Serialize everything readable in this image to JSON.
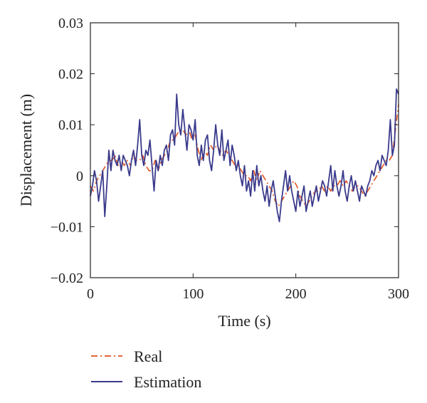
{
  "chart_data": {
    "type": "line",
    "title": "",
    "xlabel": "Time (s)",
    "ylabel": "Displacement (m)",
    "xlim": [
      0,
      300
    ],
    "ylim": [
      -0.02,
      0.03
    ],
    "x_ticks": [
      0,
      100,
      200,
      300
    ],
    "x_tick_labels": [
      "0",
      "100",
      "200",
      "300"
    ],
    "y_ticks": [
      -0.02,
      -0.01,
      0,
      0.01,
      0.02,
      0.03
    ],
    "y_tick_labels": [
      "−0.02",
      "−0.01",
      "0",
      "0.01",
      "0.02",
      "0.03"
    ],
    "grid": false,
    "legend_position": "bottom",
    "series": [
      {
        "name": "Real",
        "color": "#e0521c",
        "line_style": "dash-dot",
        "x": [
          0,
          3,
          6,
          9,
          12,
          15,
          18,
          21,
          24,
          27,
          30,
          33,
          36,
          39,
          42,
          45,
          48,
          51,
          54,
          57,
          60,
          63,
          66,
          69,
          72,
          75,
          78,
          81,
          84,
          87,
          90,
          93,
          96,
          99,
          102,
          105,
          108,
          111,
          114,
          117,
          120,
          123,
          126,
          129,
          132,
          135,
          138,
          141,
          144,
          147,
          150,
          153,
          156,
          159,
          162,
          165,
          168,
          171,
          174,
          177,
          180,
          183,
          186,
          189,
          192,
          195,
          198,
          201,
          204,
          207,
          210,
          213,
          216,
          219,
          222,
          225,
          228,
          231,
          234,
          237,
          240,
          243,
          246,
          249,
          252,
          255,
          258,
          261,
          264,
          267,
          270,
          273,
          276,
          279,
          282,
          285,
          288,
          291,
          294,
          297,
          300
        ],
        "y": [
          -0.002,
          -0.003,
          -0.001,
          0.0,
          0.001,
          0.002,
          0.003,
          0.003,
          0.004,
          0.002,
          0.003,
          0.002,
          0.003,
          0.002,
          0.004,
          0.003,
          0.003,
          0.004,
          0.002,
          0.001,
          0.001,
          0.003,
          0.001,
          0.003,
          0.004,
          0.005,
          0.007,
          0.007,
          0.008,
          0.009,
          0.009,
          0.008,
          0.009,
          0.007,
          0.008,
          0.005,
          0.003,
          0.005,
          0.004,
          0.006,
          0.005,
          0.006,
          0.005,
          0.004,
          0.005,
          0.004,
          0.003,
          0.002,
          0.002,
          0.001,
          0.0,
          0.0,
          -0.001,
          0.001,
          -0.001,
          0.001,
          0.0,
          -0.001,
          -0.002,
          -0.003,
          -0.005,
          -0.006,
          -0.005,
          -0.004,
          -0.003,
          -0.002,
          -0.001,
          -0.002,
          -0.004,
          -0.005,
          -0.006,
          -0.005,
          -0.004,
          -0.003,
          -0.003,
          -0.002,
          -0.003,
          -0.002,
          -0.003,
          -0.002,
          -0.002,
          -0.001,
          -0.002,
          -0.001,
          -0.002,
          -0.003,
          -0.002,
          -0.002,
          -0.003,
          -0.004,
          -0.003,
          -0.002,
          -0.001,
          0.0,
          0.001,
          0.002,
          0.003,
          0.003,
          0.004,
          0.009,
          0.014
        ]
      },
      {
        "name": "Estimation",
        "color": "#3a3a8c",
        "line_style": "solid",
        "x": [
          0,
          2,
          4,
          6,
          8,
          10,
          12,
          14,
          16,
          18,
          20,
          22,
          24,
          26,
          28,
          30,
          32,
          34,
          36,
          38,
          40,
          42,
          44,
          46,
          48,
          50,
          52,
          54,
          56,
          58,
          60,
          62,
          64,
          66,
          68,
          70,
          72,
          74,
          76,
          78,
          80,
          82,
          84,
          86,
          88,
          90,
          92,
          94,
          96,
          98,
          100,
          102,
          104,
          106,
          108,
          110,
          112,
          114,
          116,
          118,
          120,
          122,
          124,
          126,
          128,
          130,
          132,
          134,
          136,
          138,
          140,
          142,
          144,
          146,
          148,
          150,
          152,
          154,
          156,
          158,
          160,
          162,
          164,
          166,
          168,
          170,
          172,
          174,
          176,
          178,
          180,
          182,
          184,
          186,
          188,
          190,
          192,
          194,
          196,
          198,
          200,
          202,
          204,
          206,
          208,
          210,
          212,
          214,
          216,
          218,
          220,
          222,
          224,
          226,
          228,
          230,
          232,
          234,
          236,
          238,
          240,
          242,
          244,
          246,
          248,
          250,
          252,
          254,
          256,
          258,
          260,
          262,
          264,
          266,
          268,
          270,
          272,
          274,
          276,
          278,
          280,
          282,
          284,
          286,
          288,
          290,
          292,
          294,
          296,
          298,
          300
        ],
        "y": [
          -0.004,
          -0.002,
          0.001,
          -0.001,
          -0.005,
          -0.002,
          0.001,
          -0.008,
          -0.002,
          0.005,
          0.001,
          0.005,
          0.003,
          0.002,
          0.004,
          0.001,
          0.004,
          0.003,
          0.002,
          0.0,
          0.003,
          0.005,
          0.002,
          0.006,
          0.011,
          0.004,
          0.002,
          0.005,
          0.004,
          0.007,
          0.002,
          -0.003,
          0.003,
          0.001,
          0.004,
          0.002,
          0.005,
          0.006,
          0.003,
          0.008,
          0.009,
          0.006,
          0.016,
          0.01,
          0.008,
          0.013,
          0.009,
          0.005,
          0.01,
          0.009,
          0.007,
          0.011,
          0.004,
          0.002,
          0.006,
          0.003,
          0.007,
          0.008,
          0.003,
          0.001,
          0.005,
          0.01,
          0.006,
          0.004,
          0.009,
          0.003,
          0.005,
          0.007,
          0.002,
          0.006,
          0.004,
          0.001,
          0.003,
          0.0,
          -0.002,
          0.002,
          -0.003,
          -0.001,
          -0.004,
          0.001,
          -0.003,
          0.002,
          -0.002,
          0.0,
          -0.003,
          -0.005,
          -0.002,
          -0.006,
          -0.003,
          -0.001,
          -0.004,
          -0.007,
          -0.009,
          -0.005,
          -0.002,
          0.001,
          -0.003,
          0.0,
          -0.003,
          -0.005,
          -0.007,
          -0.003,
          -0.006,
          -0.004,
          -0.002,
          -0.007,
          -0.005,
          -0.003,
          -0.006,
          -0.004,
          -0.002,
          -0.005,
          -0.003,
          -0.001,
          -0.002,
          -0.004,
          -0.001,
          0.002,
          -0.003,
          0.001,
          -0.002,
          -0.004,
          -0.002,
          0.001,
          -0.003,
          -0.005,
          -0.002,
          0.0,
          -0.003,
          -0.001,
          -0.003,
          -0.005,
          -0.002,
          -0.003,
          -0.004,
          -0.002,
          -0.001,
          0.001,
          0.0,
          0.002,
          0.003,
          0.001,
          0.004,
          0.003,
          0.002,
          0.005,
          0.011,
          0.004,
          0.006,
          0.017,
          0.016
        ]
      }
    ]
  }
}
